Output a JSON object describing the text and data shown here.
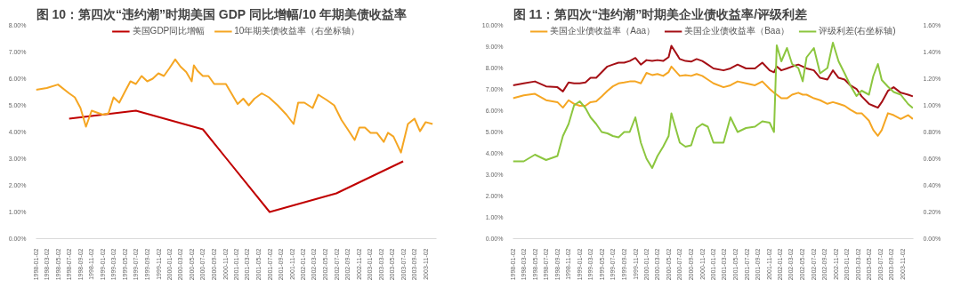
{
  "chart_data": [
    {
      "type": "line",
      "title": "图 10：第四次“违约潮”时期美国 GDP 同比增幅/10 年期美债收益率",
      "legend": "top",
      "grid": false,
      "xlim": [
        "1998-01-02",
        "2003-12-31"
      ],
      "xticks": [
        "1998-01-02",
        "1998-03-02",
        "1998-05-02",
        "1998-07-02",
        "1998-09-02",
        "1998-11-02",
        "1999-01-02",
        "1999-03-02",
        "1999-05-02",
        "1999-07-02",
        "1999-09-02",
        "1999-11-02",
        "2000-01-02",
        "2000-03-02",
        "2000-05-02",
        "2000-07-02",
        "2000-09-02",
        "2000-11-02",
        "2001-01-02",
        "2001-03-02",
        "2001-05-02",
        "2001-07-02",
        "2001-09-02",
        "2001-11-02",
        "2002-01-02",
        "2002-03-02",
        "2002-05-02",
        "2002-07-02",
        "2002-09-02",
        "2002-11-02",
        "2003-01-02",
        "2003-03-02",
        "2003-05-02",
        "2003-07-02",
        "2003-09-02",
        "2003-11-02"
      ],
      "ylim": [
        0,
        8
      ],
      "yticks": [
        {
          "value": 0,
          "label": "0.00%"
        },
        {
          "value": 1,
          "label": "1.00%"
        },
        {
          "value": 2,
          "label": "2.00%"
        },
        {
          "value": 3,
          "label": "3.00%"
        },
        {
          "value": 4,
          "label": "4.00%"
        },
        {
          "value": 5,
          "label": "5.00%"
        },
        {
          "value": 6,
          "label": "6.00%"
        },
        {
          "value": 7,
          "label": "7.00%"
        },
        {
          "value": 8,
          "label": "8.00%"
        }
      ],
      "series": [
        {
          "name": "美国GDP同比增幅",
          "color": "#c00000",
          "x": [
            "1998-07-02",
            "1999-07-02",
            "2000-07-02",
            "2001-07-02",
            "2002-07-02",
            "2003-07-02"
          ],
          "values": [
            4.5,
            4.8,
            4.1,
            1.0,
            1.7,
            2.9
          ]
        },
        {
          "name": "10年期美债收益率（右坐标轴）",
          "color": "#f5a623",
          "x": [
            "1998-01-02",
            "1998-03-02",
            "1998-05-02",
            "1998-07-02",
            "1998-08-02",
            "1998-09-02",
            "1998-10-02",
            "1998-11-02",
            "1999-01-02",
            "1999-02-02",
            "1999-03-02",
            "1999-04-02",
            "1999-05-02",
            "1999-06-02",
            "1999-07-02",
            "1999-08-02",
            "1999-09-02",
            "1999-10-02",
            "1999-11-02",
            "1999-12-02",
            "2000-01-02",
            "2000-02-02",
            "2000-03-02",
            "2000-04-02",
            "2000-05-02",
            "2000-05-14",
            "2000-06-02",
            "2000-07-02",
            "2000-08-02",
            "2000-09-02",
            "2000-10-02",
            "2000-11-05",
            "2000-12-05",
            "2001-01-08",
            "2001-02-08",
            "2001-03-10",
            "2001-04-10",
            "2001-05-20",
            "2001-06-28",
            "2001-08-15",
            "2001-10-02",
            "2001-11-10",
            "2001-12-05",
            "2002-01-08",
            "2002-02-22",
            "2002-03-25",
            "2002-05-10",
            "2002-06-20",
            "2002-07-30",
            "2002-09-02",
            "2002-10-10",
            "2002-11-05",
            "2002-12-05",
            "2003-01-05",
            "2003-02-08",
            "2003-03-18",
            "2003-04-10",
            "2003-05-10",
            "2003-06-20",
            "2003-07-28",
            "2003-09-02",
            "2003-10-02",
            "2003-11-02",
            "2003-12-10"
          ],
          "values": [
            5.58,
            5.65,
            5.78,
            5.45,
            5.3,
            4.9,
            4.2,
            4.8,
            4.65,
            4.7,
            5.3,
            5.1,
            5.5,
            5.9,
            5.8,
            6.1,
            5.9,
            6.0,
            6.2,
            6.1,
            6.4,
            6.72,
            6.45,
            6.25,
            5.9,
            6.5,
            6.3,
            6.1,
            6.1,
            5.8,
            5.8,
            5.8,
            5.45,
            5.05,
            5.25,
            5.0,
            5.25,
            5.45,
            5.3,
            5.0,
            4.65,
            4.3,
            5.1,
            5.1,
            4.9,
            5.4,
            5.2,
            5.0,
            4.45,
            4.1,
            3.7,
            4.17,
            4.17,
            3.97,
            3.97,
            3.63,
            3.97,
            3.83,
            3.23,
            4.3,
            4.5,
            4.03,
            4.37,
            4.3
          ]
        }
      ]
    },
    {
      "type": "line",
      "title": "图 11：第四次“违约潮”时期美企业债收益率/评级利差",
      "legend": "top",
      "grid": false,
      "xlim": [
        "1998-01-02",
        "2003-12-31"
      ],
      "xticks": [
        "1998-01-02",
        "1998-03-02",
        "1998-05-02",
        "1998-07-02",
        "1998-09-02",
        "1998-11-02",
        "1999-01-02",
        "1999-03-02",
        "1999-05-02",
        "1999-07-02",
        "1999-09-02",
        "1999-11-02",
        "2000-01-02",
        "2000-03-02",
        "2000-05-02",
        "2000-07-02",
        "2000-09-02",
        "2000-11-02",
        "2001-01-02",
        "2001-03-02",
        "2001-05-02",
        "2001-07-02",
        "2001-09-02",
        "2001-11-02",
        "2002-01-02",
        "2002-03-02",
        "2002-05-02",
        "2002-07-02",
        "2002-09-02",
        "2002-11-02",
        "2003-01-02",
        "2003-03-02",
        "2003-05-02",
        "2003-07-02",
        "2003-09-02",
        "2003-11-02"
      ],
      "ylim": [
        0,
        10
      ],
      "yticks": [
        {
          "value": 0,
          "label": "0.00%"
        },
        {
          "value": 1,
          "label": "1.00%"
        },
        {
          "value": 2,
          "label": "2.00%"
        },
        {
          "value": 3,
          "label": "3.00%"
        },
        {
          "value": 4,
          "label": "4.00%"
        },
        {
          "value": 5,
          "label": "5.00%"
        },
        {
          "value": 6,
          "label": "6.00%"
        },
        {
          "value": 7,
          "label": "7.00%"
        },
        {
          "value": 8,
          "label": "8.00%"
        },
        {
          "value": 9,
          "label": "9.00%"
        },
        {
          "value": 10,
          "label": "10.00%"
        }
      ],
      "y2lim": [
        0,
        1.6
      ],
      "y2ticks": [
        {
          "value": 0,
          "label": "0.00%"
        },
        {
          "value": 0.2,
          "label": "0.20%"
        },
        {
          "value": 0.4,
          "label": "0.40%"
        },
        {
          "value": 0.6,
          "label": "0.60%"
        },
        {
          "value": 0.8,
          "label": "0.80%"
        },
        {
          "value": 1.0,
          "label": "1.00%"
        },
        {
          "value": 1.2,
          "label": "1.20%"
        },
        {
          "value": 1.4,
          "label": "1.40%"
        },
        {
          "value": 1.6,
          "label": "1.60%"
        }
      ],
      "x": [
        "1998-01-02",
        "1998-03-02",
        "1998-05-02",
        "1998-07-02",
        "1998-09-02",
        "1998-10-02",
        "1998-11-02",
        "1998-12-02",
        "1999-01-02",
        "1999-02-02",
        "1999-03-02",
        "1999-04-02",
        "1999-05-02",
        "1999-06-02",
        "1999-07-02",
        "1999-08-02",
        "1999-09-02",
        "1999-10-02",
        "1999-11-02",
        "1999-12-02",
        "2000-01-02",
        "2000-02-02",
        "2000-03-02",
        "2000-04-02",
        "2000-05-02",
        "2000-05-17",
        "2000-07-02",
        "2000-08-02",
        "2000-09-02",
        "2000-10-02",
        "2000-11-02",
        "2000-12-02",
        "2001-01-02",
        "2001-02-26",
        "2001-04-05",
        "2001-05-14",
        "2001-06-29",
        "2001-08-17",
        "2001-09-26",
        "2001-11-05",
        "2001-11-29",
        "2001-12-14",
        "2002-01-08",
        "2002-02-08",
        "2002-03-08",
        "2002-04-11",
        "2002-05-05",
        "2002-05-26",
        "2002-07-05",
        "2002-08-08",
        "2002-09-17",
        "2002-10-17",
        "2002-11-17",
        "2002-12-20",
        "2003-01-20",
        "2003-02-23",
        "2003-03-23",
        "2003-05-02",
        "2003-05-26",
        "2003-06-20",
        "2003-07-11",
        "2003-08-14",
        "2003-09-14",
        "2003-10-23",
        "2003-12-02",
        "2003-12-28"
      ],
      "series": [
        {
          "name": "美国企业债收益率（Aaa）",
          "color": "#f5a623",
          "values": [
            6.58,
            6.72,
            6.79,
            6.49,
            6.4,
            6.14,
            6.49,
            6.32,
            6.23,
            6.23,
            6.4,
            6.44,
            6.67,
            6.93,
            7.14,
            7.28,
            7.32,
            7.37,
            7.37,
            7.28,
            7.77,
            7.67,
            7.72,
            7.63,
            7.81,
            8.07,
            7.63,
            7.67,
            7.63,
            7.72,
            7.63,
            7.46,
            7.28,
            7.1,
            7.19,
            7.37,
            7.28,
            7.19,
            7.37,
            7.02,
            6.84,
            6.75,
            6.58,
            6.58,
            6.75,
            6.84,
            6.75,
            6.75,
            6.58,
            6.49,
            6.32,
            6.4,
            6.32,
            6.23,
            6.05,
            5.88,
            5.88,
            5.53,
            5.09,
            4.82,
            5.09,
            5.88,
            5.79,
            5.61,
            5.79,
            5.61
          ]
        },
        {
          "name": "美国企业债收益率（Baa）",
          "color": "#a50f15",
          "values": [
            7.19,
            7.28,
            7.37,
            7.14,
            7.1,
            6.9,
            7.32,
            7.28,
            7.28,
            7.32,
            7.54,
            7.54,
            7.8,
            8.07,
            8.16,
            8.25,
            8.25,
            8.33,
            8.47,
            8.16,
            8.37,
            8.33,
            8.37,
            8.33,
            8.51,
            9.04,
            8.42,
            8.33,
            8.3,
            8.42,
            8.33,
            8.16,
            7.98,
            7.89,
            7.98,
            8.16,
            7.98,
            7.98,
            8.25,
            7.89,
            7.8,
            8.07,
            7.89,
            7.98,
            8.07,
            8.16,
            8.07,
            7.98,
            7.89,
            7.54,
            7.46,
            7.89,
            7.54,
            7.46,
            7.19,
            7.02,
            6.67,
            6.32,
            6.23,
            6.14,
            6.4,
            6.93,
            7.1,
            6.84,
            6.75,
            6.67
          ]
        },
        {
          "name": "评级利差(右坐标轴)",
          "color": "#8cc63f",
          "axis": "y2",
          "values": [
            0.58,
            0.58,
            0.63,
            0.59,
            0.62,
            0.77,
            0.86,
            1.0,
            1.03,
            0.98,
            0.91,
            0.86,
            0.8,
            0.79,
            0.77,
            0.76,
            0.8,
            0.8,
            0.91,
            0.72,
            0.6,
            0.53,
            0.62,
            0.69,
            0.77,
            0.94,
            0.72,
            0.69,
            0.7,
            0.83,
            0.86,
            0.84,
            0.72,
            0.72,
            0.91,
            0.8,
            0.83,
            0.84,
            0.88,
            0.87,
            0.8,
            1.45,
            1.33,
            1.43,
            1.31,
            1.28,
            1.18,
            1.36,
            1.43,
            1.24,
            1.28,
            1.47,
            1.33,
            1.24,
            1.15,
            1.07,
            1.11,
            1.08,
            1.22,
            1.31,
            1.19,
            1.14,
            1.1,
            1.08,
            1.01,
            0.98
          ]
        }
      ]
    }
  ]
}
